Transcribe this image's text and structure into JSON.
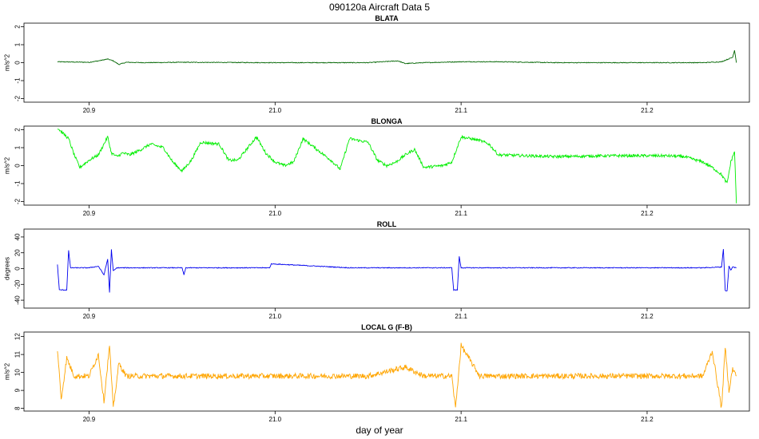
{
  "title": "090120a   Aircraft Data 5",
  "xlabel": "day of year",
  "chart_data": [
    {
      "type": "line",
      "title": "BLATA",
      "ylabel": "m/s^2",
      "xlim": [
        20.865,
        21.255
      ],
      "ylim": [
        -2.2,
        2.2
      ],
      "yticks": [
        -2,
        -1,
        0,
        1,
        2
      ],
      "xticks": [
        20.9,
        21.0,
        21.1,
        21.2
      ],
      "color": "#006400",
      "baseline": 0.0,
      "noise": 0.02,
      "series": [
        {
          "x": [
            20.883,
            20.9,
            20.905,
            20.91,
            20.913,
            20.916,
            20.92,
            20.93,
            20.95,
            21.0,
            21.05,
            21.066,
            21.07,
            21.08,
            21.1,
            21.12,
            21.15,
            21.2,
            21.23,
            21.24,
            21.246,
            21.247,
            21.248
          ],
          "y": [
            0.05,
            0.02,
            0.1,
            0.2,
            0.1,
            -0.1,
            0.02,
            0.0,
            0.02,
            0.0,
            0.0,
            0.1,
            -0.05,
            0.0,
            0.05,
            0.05,
            0.0,
            0.0,
            0.0,
            0.05,
            0.3,
            0.7,
            0.0
          ]
        }
      ]
    },
    {
      "type": "line",
      "title": "BLONGA",
      "ylabel": "m/s^2",
      "xlim": [
        20.865,
        21.255
      ],
      "ylim": [
        -2.2,
        2.2
      ],
      "yticks": [
        -2,
        -1,
        0,
        1,
        2
      ],
      "xticks": [
        20.9,
        21.0,
        21.1,
        21.2
      ],
      "color": "#00ee00",
      "baseline": 0.0,
      "noise": 0.08,
      "series": [
        {
          "x": [
            20.883,
            20.886,
            20.889,
            20.892,
            20.895,
            20.9,
            20.905,
            20.91,
            20.912,
            20.915,
            20.918,
            20.922,
            20.928,
            20.933,
            20.94,
            20.945,
            20.95,
            20.955,
            20.96,
            20.97,
            20.975,
            20.98,
            20.99,
            20.995,
            21.0,
            21.005,
            21.01,
            21.015,
            21.02,
            21.03,
            21.035,
            21.04,
            21.045,
            21.05,
            21.055,
            21.06,
            21.065,
            21.07,
            21.075,
            21.08,
            21.09,
            21.095,
            21.1,
            21.105,
            21.11,
            21.115,
            21.12,
            21.15,
            21.18,
            21.21,
            21.22,
            21.23,
            21.235,
            21.24,
            21.243,
            21.245,
            21.247,
            21.248
          ],
          "y": [
            2.1,
            1.8,
            1.5,
            0.6,
            -0.1,
            0.3,
            0.6,
            1.6,
            0.7,
            0.5,
            0.7,
            0.6,
            0.9,
            1.2,
            1.0,
            0.2,
            -0.3,
            0.3,
            1.3,
            1.2,
            0.3,
            0.3,
            1.6,
            0.7,
            0.2,
            0.0,
            0.2,
            1.5,
            1.1,
            0.3,
            -0.2,
            1.5,
            1.4,
            1.3,
            0.3,
            0.0,
            0.2,
            0.6,
            0.9,
            -0.1,
            0.0,
            0.2,
            1.6,
            1.5,
            1.4,
            1.2,
            0.6,
            0.5,
            0.55,
            0.55,
            0.5,
            0.2,
            -0.1,
            -0.5,
            -1.0,
            0.2,
            0.8,
            -2.1
          ]
        }
      ]
    },
    {
      "type": "line",
      "title": "ROLL",
      "ylabel": "degrees",
      "xlim": [
        20.865,
        21.255
      ],
      "ylim": [
        -50,
        50
      ],
      "yticks": [
        -40,
        -20,
        0,
        20,
        40
      ],
      "xticks": [
        20.9,
        21.0,
        21.1,
        21.2
      ],
      "color": "#0000ee",
      "baseline": 1,
      "noise": 0.5,
      "series": [
        {
          "x": [
            20.883,
            20.884,
            20.885,
            20.888,
            20.889,
            20.89,
            20.9,
            20.905,
            20.908,
            20.91,
            20.911,
            20.912,
            20.913,
            20.915,
            20.95,
            20.951,
            20.952,
            20.997,
            20.998,
            21.04,
            21.095,
            21.096,
            21.0975,
            21.098,
            21.099,
            21.1,
            21.23,
            21.24,
            21.241,
            21.242,
            21.243,
            21.244,
            21.245,
            21.246,
            21.248
          ],
          "y": [
            5,
            -27,
            -27,
            -27,
            23,
            1,
            1,
            3,
            -8,
            12,
            -30,
            24,
            -3,
            1,
            1,
            -8,
            1,
            1,
            6,
            1,
            1,
            -27,
            -27,
            -27,
            15,
            1,
            1,
            2,
            25,
            -28,
            -28,
            3,
            -2,
            2,
            1
          ]
        }
      ]
    },
    {
      "type": "line",
      "title": "LOCAL G (F-B)",
      "ylabel": "m/s^2",
      "xlim": [
        20.865,
        21.255
      ],
      "ylim": [
        7.85,
        12.25
      ],
      "yticks": [
        8,
        9,
        10,
        11,
        12
      ],
      "xticks": [
        20.9,
        21.0,
        21.1,
        21.2
      ],
      "color": "#ffa500",
      "baseline": 9.8,
      "noise": 0.15,
      "series": [
        {
          "x": [
            20.883,
            20.885,
            20.888,
            20.892,
            20.9,
            20.905,
            20.908,
            20.911,
            20.913,
            20.916,
            20.92,
            20.95,
            21.0,
            21.05,
            21.07,
            21.08,
            21.095,
            21.097,
            21.1,
            21.11,
            21.15,
            21.2,
            21.23,
            21.235,
            21.24,
            21.242,
            21.244,
            21.246,
            21.248
          ],
          "y": [
            11.3,
            8.5,
            10.8,
            9.8,
            9.8,
            11.0,
            8.4,
            11.5,
            8.0,
            10.5,
            9.8,
            9.8,
            9.8,
            9.8,
            10.3,
            9.8,
            9.8,
            8.0,
            11.5,
            9.8,
            9.8,
            9.8,
            9.8,
            11.2,
            8.0,
            11.4,
            9.0,
            10.2,
            9.8
          ]
        }
      ]
    }
  ]
}
